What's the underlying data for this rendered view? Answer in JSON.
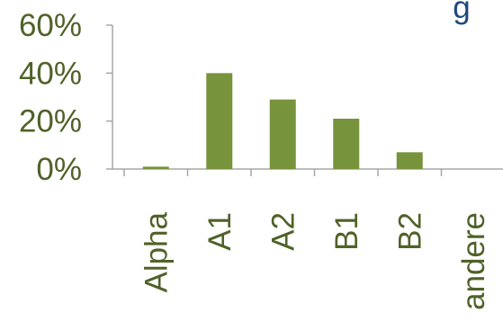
{
  "chart_data": {
    "type": "bar",
    "title": "g",
    "categories": [
      "Alpha",
      "A1",
      "A2",
      "B1",
      "B2",
      "andere"
    ],
    "values": [
      1,
      40,
      29,
      21,
      7,
      0
    ],
    "y_ticks": [
      "0%",
      "20%",
      "40%",
      "60%"
    ],
    "y_tick_values": [
      0,
      20,
      40,
      60
    ],
    "ylim": [
      0,
      60
    ],
    "xlabel": "",
    "ylabel": "",
    "grid": false,
    "legend": "none",
    "colors": {
      "bar": "#77933c",
      "tick_text": "#4f6228",
      "axis": "#a6a6a6",
      "title": "#1f497d"
    }
  }
}
